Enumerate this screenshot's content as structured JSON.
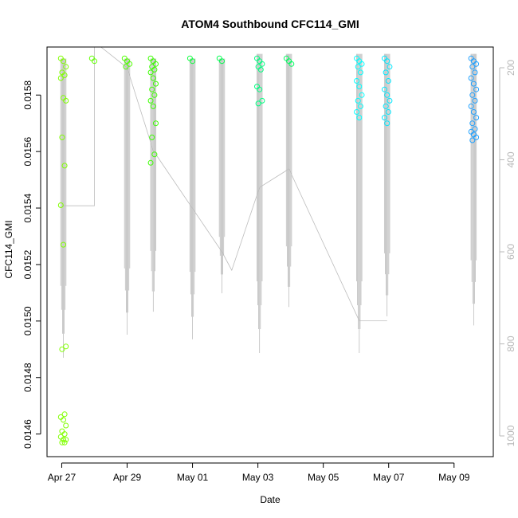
{
  "chart_data": {
    "type": "scatter",
    "title": "ATOM4 Southbound CFC114_GMI",
    "xlabel": "Date",
    "ylabel": "CFC114_GMI",
    "x_ticks": [
      "Apr 27",
      "Apr 29",
      "May 01",
      "May 03",
      "May 05",
      "May 07",
      "May 09"
    ],
    "x_tick_days": [
      0,
      2,
      4,
      6,
      8,
      10,
      12
    ],
    "xlim_days": [
      -0.45,
      13.2
    ],
    "y_ticks": [
      0.0146,
      0.0148,
      0.015,
      0.0152,
      0.0154,
      0.0156,
      0.0158
    ],
    "y_tick_labels": [
      "0.0146",
      "0.0148",
      "0.0150",
      "0.0152",
      "0.0154",
      "0.0156",
      "0.0158"
    ],
    "ylim": [
      0.01452,
      0.01597
    ],
    "right_axis": {
      "label": "",
      "ticks": [
        200,
        400,
        600,
        800,
        1000
      ],
      "tick_labels": [
        "200",
        "400",
        "600",
        "800",
        "1000"
      ],
      "lim_top": 155,
      "lim_bottom": 1045,
      "color": "#b8b8b8"
    },
    "grid": false,
    "legend": "none",
    "marker": "open-circle",
    "point_colors": {
      "apr27": "#80ff00",
      "apr28": "#60ff00",
      "apr29": "#50ff00",
      "apr30": "#3cff00",
      "may01": "#10ff40",
      "may02": "#00ff50",
      "may03": "#00ff80",
      "may04": "#00ff60",
      "may06": "#00ffff",
      "may07": "#00e8ff",
      "may09": "#1ea0ff"
    },
    "clusters": [
      {
        "day": 0.05,
        "color": "#80ff00",
        "values": [
          0.01593,
          0.01592,
          0.0159,
          0.01588,
          0.01587,
          0.01586,
          0.01579,
          0.01578,
          0.01565,
          0.01555,
          0.01541,
          0.01527,
          0.01491,
          0.0149,
          0.01467,
          0.01466,
          0.01465,
          0.01463,
          0.01461,
          0.0146,
          0.01459,
          0.01458,
          0.01458,
          0.01457,
          0.01457
        ]
      },
      {
        "day": 1.0,
        "color": "#60ff00",
        "values": [
          0.01593,
          0.01592
        ]
      },
      {
        "day": 2.0,
        "color": "#50ff00",
        "values": [
          0.01593,
          0.01592,
          0.01591,
          0.0159
        ]
      },
      {
        "day": 2.8,
        "color": "#3cff00",
        "values": [
          0.01593,
          0.01592,
          0.01591,
          0.0159,
          0.01589,
          0.01588,
          0.01586,
          0.01584,
          0.01582,
          0.0158,
          0.01578,
          0.01576,
          0.0157,
          0.01565,
          0.01559,
          0.01556
        ]
      },
      {
        "day": 4.0,
        "color": "#10ff40",
        "values": [
          0.01593,
          0.01592
        ]
      },
      {
        "day": 4.9,
        "color": "#00ff50",
        "values": [
          0.01593,
          0.01592
        ]
      },
      {
        "day": 6.05,
        "color": "#00ff80",
        "values": [
          0.01593,
          0.01592,
          0.01591,
          0.0159,
          0.01589,
          0.01583,
          0.01582,
          0.01578,
          0.01577
        ]
      },
      {
        "day": 6.95,
        "color": "#00ff60",
        "values": [
          0.01593,
          0.01592,
          0.01591
        ]
      },
      {
        "day": 9.1,
        "color": "#00ffff",
        "values": [
          0.01593,
          0.01592,
          0.01591,
          0.0159,
          0.01588,
          0.01585,
          0.01583,
          0.0158,
          0.01578,
          0.01576,
          0.01574,
          0.01572
        ]
      },
      {
        "day": 9.95,
        "color": "#00e8ff",
        "values": [
          0.01593,
          0.01592,
          0.0159,
          0.01588,
          0.01585,
          0.01582,
          0.0158,
          0.01578,
          0.01576,
          0.01574,
          0.01572,
          0.0157
        ]
      },
      {
        "day": 12.6,
        "color": "#1ea0ff",
        "values": [
          0.01593,
          0.01592,
          0.01591,
          0.0159,
          0.01588,
          0.01586,
          0.01584,
          0.01582,
          0.0158,
          0.01578,
          0.01576,
          0.01574,
          0.01572,
          0.0157,
          0.01568,
          0.01567,
          0.01566,
          0.01565,
          0.01564
        ]
      }
    ],
    "pressure_profiles": [
      {
        "day": 0.05,
        "min": 180,
        "max": 830
      },
      {
        "day": 2.0,
        "min": 180,
        "max": 780
      },
      {
        "day": 2.8,
        "min": 180,
        "max": 730
      },
      {
        "day": 4.0,
        "min": 180,
        "max": 790
      },
      {
        "day": 4.9,
        "min": 180,
        "max": 690
      },
      {
        "day": 6.05,
        "min": 170,
        "max": 820
      },
      {
        "day": 6.95,
        "min": 170,
        "max": 720
      },
      {
        "day": 9.1,
        "min": 170,
        "max": 820
      },
      {
        "day": 9.95,
        "min": 170,
        "max": 740
      },
      {
        "day": 12.6,
        "min": 170,
        "max": 760
      }
    ],
    "transit_path": [
      {
        "day": 0.05,
        "p": 500
      },
      {
        "day": 1.0,
        "p": 500
      },
      {
        "day": 1.0,
        "p": 155
      },
      {
        "day": 1.2,
        "p": 155
      },
      {
        "day": 2.0,
        "p": 200
      },
      {
        "day": 2.8,
        "p": 380
      },
      {
        "day": 4.9,
        "p": 600
      },
      {
        "day": 5.2,
        "p": 640
      },
      {
        "day": 6.05,
        "p": 460
      },
      {
        "day": 6.95,
        "p": 420
      },
      {
        "day": 9.1,
        "p": 750
      },
      {
        "day": 9.95,
        "p": 750
      }
    ]
  }
}
